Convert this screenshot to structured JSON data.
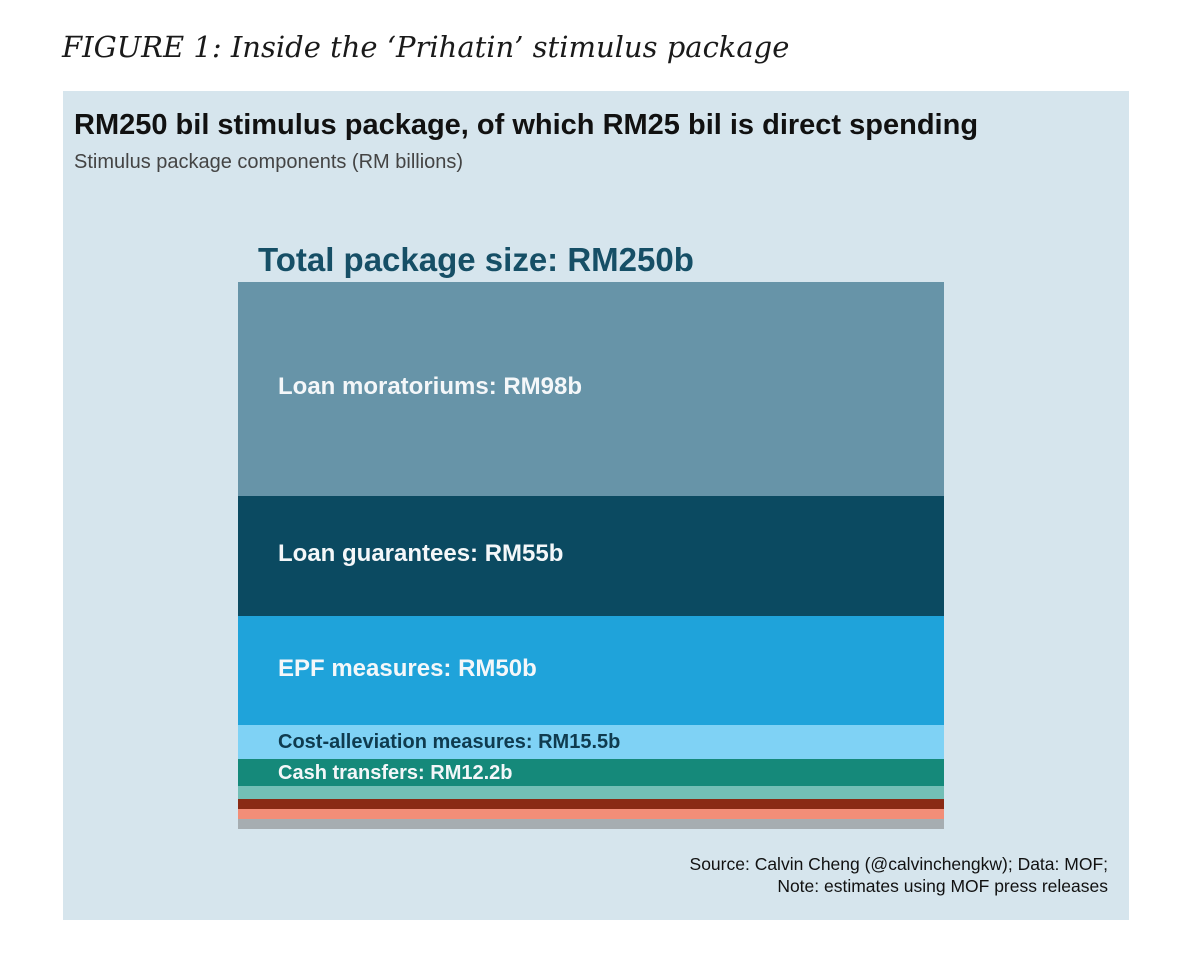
{
  "figure_caption": "FIGURE 1: Inside the ‘Prihatin’ stimulus package",
  "source_lines": [
    "Source: Calvin Cheng (@calvinchengkw); Data: MOF;",
    "Note: estimates using MOF press releases"
  ],
  "chart_data": {
    "type": "bar",
    "orientation": "stacked-vertical",
    "title": "RM250 bil stimulus package, of which RM25 bil is direct spending",
    "subtitle": "Stimulus package components (RM billions)",
    "total_label": "Total package size: RM250b",
    "total": 250,
    "background_color": "#d6e5ed",
    "segments": [
      {
        "label": "Loan moratoriums: RM98b",
        "value": 98,
        "color": "#6794a8",
        "label_color": "#f4f7f9"
      },
      {
        "label": "Loan guarantees: RM55b",
        "value": 55,
        "color": "#0b4a61",
        "label_color": "#f4f7f9"
      },
      {
        "label": "EPF measures: RM50b",
        "value": 50,
        "color": "#1fa3da",
        "label_color": "#f4f7f9"
      },
      {
        "label": "Cost-alleviation measures: RM15.5b",
        "value": 15.5,
        "color": "#7fd2f5",
        "label_color": "#0f3b4f"
      },
      {
        "label": "Cash transfers: RM12.2b",
        "value": 12.2,
        "color": "#15897a",
        "label_color": "#f4f7f9"
      },
      {
        "label": "",
        "value": 5.8,
        "color": "#73bfb6"
      },
      {
        "label": "",
        "value": 5,
        "color": "#8a2a14"
      },
      {
        "label": "",
        "value": 4.5,
        "color": "#f28e78"
      },
      {
        "label": "",
        "value": 4,
        "color": "#a6adb1"
      }
    ]
  }
}
